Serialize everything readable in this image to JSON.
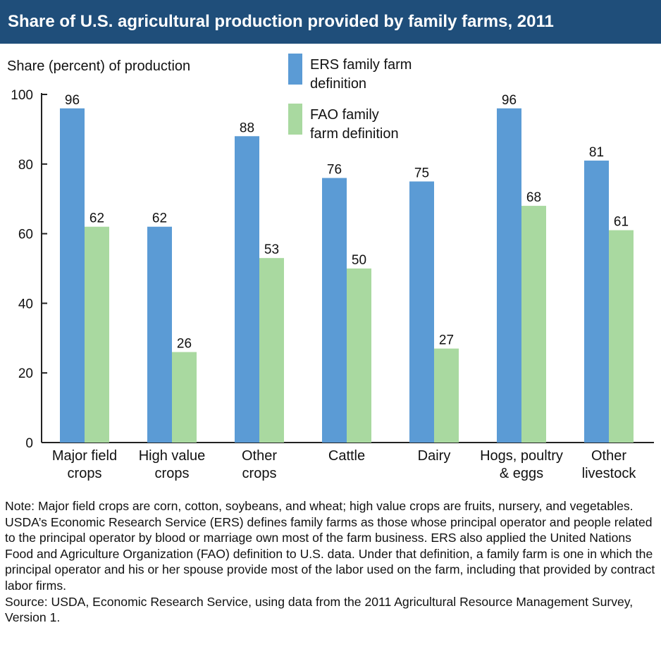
{
  "title": "Share of U.S. agricultural production provided by family farms, 2011",
  "colors": {
    "title_bg": "#1f4e7a",
    "ers": "#5b9bd5",
    "fao": "#a9d9a0",
    "axis": "#222222"
  },
  "chart_data": {
    "type": "bar",
    "title": "Share of U.S. agricultural production provided by family farms, 2011",
    "ylabel": "Share (percent) of production",
    "xlabel": "",
    "ylim": [
      0,
      100
    ],
    "yticks": [
      "0",
      "20",
      "40",
      "60",
      "80",
      "100"
    ],
    "grid": false,
    "legend_position": "top-center",
    "categories": [
      [
        "Major field",
        "crops"
      ],
      [
        "High value",
        "crops"
      ],
      [
        "Other",
        "crops"
      ],
      [
        "Cattle"
      ],
      [
        "Dairy"
      ],
      [
        "Hogs, poultry",
        "& eggs"
      ],
      [
        "Other",
        "livestock"
      ]
    ],
    "series": [
      {
        "name": "ERS family farm definition",
        "legend_lines": [
          "ERS family farm",
          "definition"
        ],
        "color": "#5b9bd5",
        "values": [
          96,
          62,
          88,
          76,
          75,
          96,
          81
        ]
      },
      {
        "name": "FAO family farm definition",
        "legend_lines": [
          "FAO family",
          "farm definition"
        ],
        "color": "#a9d9a0",
        "values": [
          62,
          26,
          53,
          50,
          27,
          68,
          61
        ]
      }
    ]
  },
  "note": {
    "text": "Note: Major field crops are corn, cotton, soybeans, and wheat; high value crops are fruits, nursery, and vegetables.  USDA’s Economic Research Service (ERS) defines family farms as those whose principal operator and people related to the principal operator by blood or marriage own most of the farm business. ERS also applied the United Nations Food and Agriculture Organization (FAO) definition to U.S. data. Under that definition, a family farm is one in which the principal operator and his or her spouse provide most of the labor used on the farm, including that provided by contract labor firms.",
    "source": "Source: USDA, Economic Research Service, using data from the 2011 Agricultural Resource Management Survey, Version 1."
  }
}
